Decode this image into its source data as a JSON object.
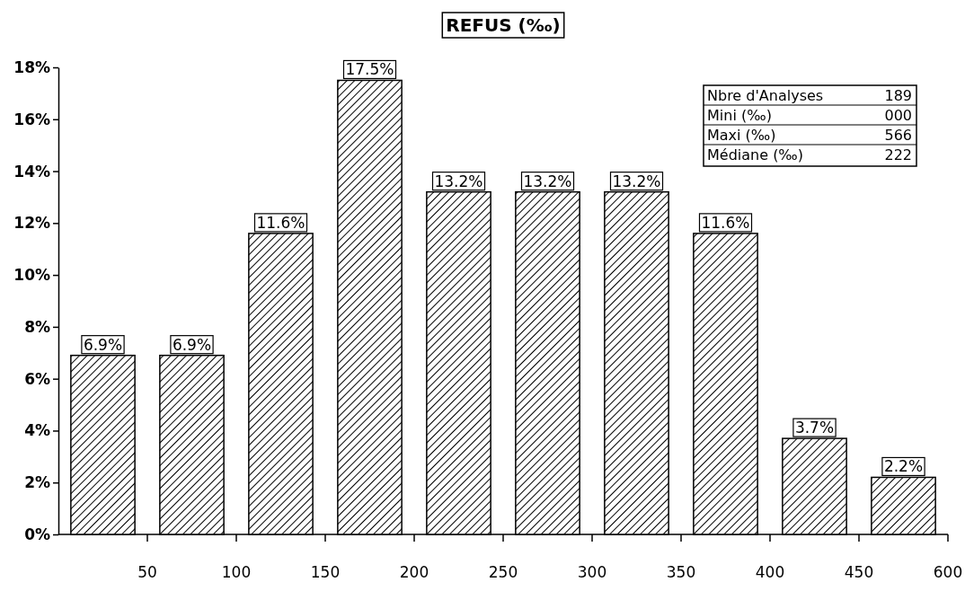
{
  "chart_data": {
    "type": "bar",
    "title": "REFUS (‰)",
    "categories": [
      "50",
      "100",
      "150",
      "200",
      "250",
      "300",
      "350",
      "400",
      "450",
      "600"
    ],
    "values": [
      6.9,
      6.9,
      11.6,
      17.5,
      13.2,
      13.2,
      13.2,
      11.6,
      3.7,
      2.2
    ],
    "color": "#000000",
    "ylim": [
      0,
      18
    ],
    "yticks": [
      {
        "value": 0,
        "label": "0%"
      },
      {
        "value": 2,
        "label": "2%"
      },
      {
        "value": 4,
        "label": "4%"
      },
      {
        "value": 6,
        "label": "6%"
      },
      {
        "value": 8,
        "label": "8%"
      },
      {
        "value": 10,
        "label": "10%"
      },
      {
        "value": 12,
        "label": "12%"
      },
      {
        "value": 14,
        "label": "14%"
      },
      {
        "value": 16,
        "label": "16%"
      },
      {
        "value": 18,
        "label": "18%"
      }
    ],
    "value_labels": [
      "6.9%",
      "6.9%",
      "11.6%",
      "17.5%",
      "13.2%",
      "13.2%",
      "13.2%",
      "11.6%",
      "3.7%",
      "2.2%"
    ],
    "annotations": [
      "Nbre d'Analyses",
      "189",
      "Mini (‰)",
      "000",
      "Maxi (‰)",
      "566",
      "Médiane (‰)",
      "222"
    ],
    "grid": false
  }
}
